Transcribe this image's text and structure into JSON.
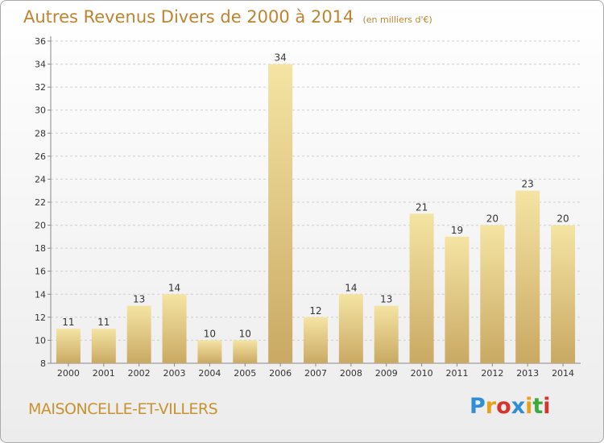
{
  "chart_data": {
    "type": "bar",
    "title": "Autres Revenus Divers de 2000 à 2014",
    "subtitle": "(en milliers d'€)",
    "categories": [
      "2000",
      "2001",
      "2002",
      "2003",
      "2004",
      "2005",
      "2006",
      "2007",
      "2008",
      "2009",
      "2010",
      "2011",
      "2012",
      "2013",
      "2014"
    ],
    "values": [
      11,
      11,
      13,
      14,
      10,
      10,
      34,
      12,
      14,
      13,
      21,
      19,
      20,
      23,
      20
    ],
    "ylim": [
      8,
      36
    ],
    "yticks": [
      8,
      10,
      12,
      14,
      16,
      18,
      20,
      22,
      24,
      26,
      28,
      30,
      32,
      34,
      36
    ],
    "grid": true,
    "xlabel": "",
    "ylabel": "",
    "bar_color": "#e6c77f",
    "bar_highlight": "#f5e4a4"
  },
  "footer": {
    "commune": "MAISONCELLE-ET-VILLERS",
    "brand": "Proxiti",
    "brand_colors": [
      "#2f8fd6",
      "#e8a11a",
      "#d9342b",
      "#2f8fd6",
      "#e8a11a",
      "#3caa3c",
      "#d9342b"
    ]
  }
}
